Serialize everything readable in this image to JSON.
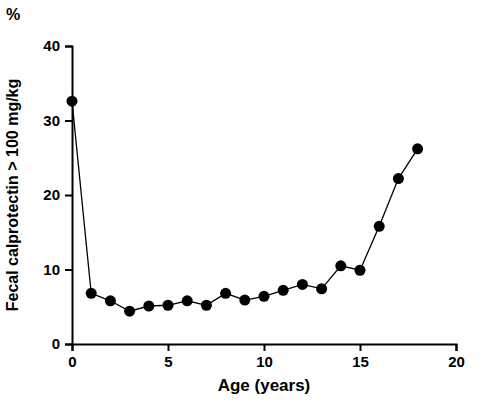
{
  "chart_data": {
    "type": "line",
    "x_label": "Age (years)",
    "y_label": "Fecal calprotectin > 100 mg/kg",
    "annotations": [
      "%"
    ],
    "x": [
      0,
      1,
      2,
      3,
      4,
      5,
      6,
      7,
      8,
      9,
      10,
      11,
      12,
      13,
      14,
      15,
      16,
      17,
      18
    ],
    "values": [
      32.6,
      6.8,
      5.8,
      4.4,
      5.1,
      5.2,
      5.8,
      5.2,
      6.8,
      5.9,
      6.4,
      7.2,
      8.0,
      7.4,
      10.5,
      9.9,
      15.8,
      22.2,
      26.2
    ],
    "color": "#000000",
    "marker": "circle",
    "line_style": "solid",
    "xlim": [
      0,
      20
    ],
    "xticks": [
      0,
      5,
      10,
      15,
      20
    ],
    "ylim": [
      0,
      40
    ],
    "yticks": [
      0,
      10,
      20,
      30,
      40
    ],
    "grid": false
  }
}
